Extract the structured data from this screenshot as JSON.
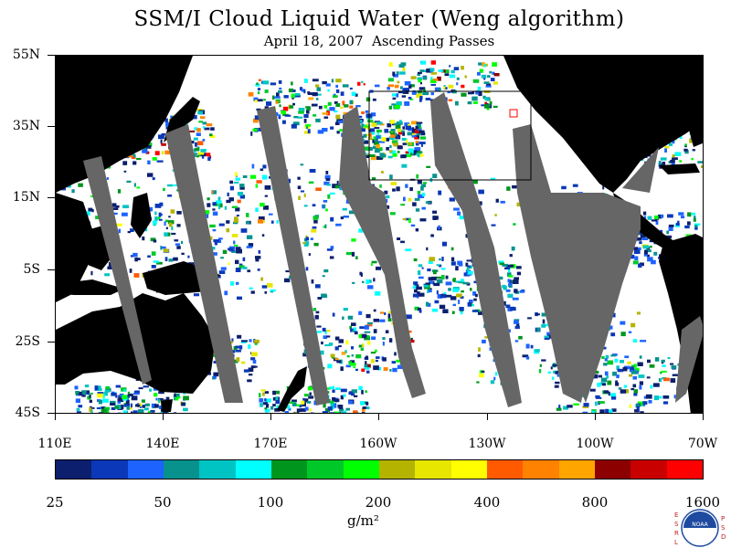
{
  "header": {
    "title": "SSM/I Cloud Liquid Water (Weng algorithm)",
    "subtitle": "April 18, 2007  Ascending Passes"
  },
  "map": {
    "lat_labels": [
      "55N",
      "35N",
      "15N",
      "5S",
      "25S",
      "45S"
    ],
    "lon_labels": [
      "110E",
      "140E",
      "170E",
      "160W",
      "130W",
      "100W",
      "70W"
    ],
    "colors": {
      "land": "#000000",
      "missing_swath": "#666666",
      "highlight_box": "#000000",
      "marker": "#ff0000"
    }
  },
  "colorbar": {
    "colors": [
      "#0b1f6e",
      "#0a38b8",
      "#1d63ff",
      "#07928e",
      "#00c4c4",
      "#00ffff",
      "#00961e",
      "#00c828",
      "#00ff00",
      "#b4b400",
      "#e6e600",
      "#ffff00",
      "#ff5a00",
      "#ff8200",
      "#ffa500",
      "#8c0000",
      "#c80000",
      "#ff0000"
    ],
    "tick_labels": [
      "25",
      "50",
      "100",
      "200",
      "400",
      "800",
      "1600"
    ],
    "unit": "g/m²"
  },
  "logo": {
    "left_letters": "ESRL",
    "right_letters": "PSD",
    "center_text": "NOAA"
  }
}
